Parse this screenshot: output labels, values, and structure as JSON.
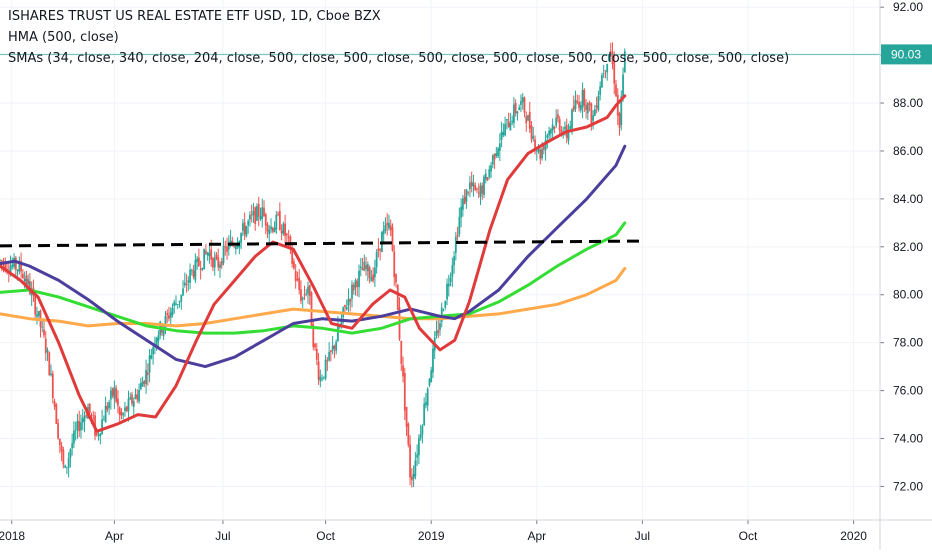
{
  "legend": {
    "title": "ISHARES TRUST US REAL ESTATE ETF USD, 1D, Cboe BZX",
    "hma": "HMA (500, close)",
    "smas": "SMAs (34, close, 340, close, 204, close, 500, close, 500, close, 500, close, 500, close, 500, close, 500, close, 500, close)"
  },
  "chart_data": {
    "type": "line",
    "title": "ISHARES TRUST US REAL ESTATE ETF USD, 1D, Cboe BZX",
    "x_ticks": [
      "2018",
      "Apr",
      "Jul",
      "Oct",
      "2019",
      "Apr",
      "Jul",
      "Oct",
      "2020"
    ],
    "y_ticks": [
      "92.00",
      "90.00",
      "88.00",
      "86.00",
      "84.00",
      "82.00",
      "80.00",
      "78.00",
      "76.00",
      "74.00",
      "72.00"
    ],
    "ylim": [
      70.6,
      92.3
    ],
    "xlim": [
      0,
      30
    ],
    "last_price": "90.03",
    "last_price_value": 90.03,
    "colors": {
      "up": "#26a69a",
      "down": "#ef5350",
      "price_line": "#26a69a",
      "hma": "#e03a3a",
      "sma_blue": "#4b3e9c",
      "sma_green": "#33dd33",
      "sma_orange": "#ffa94a",
      "dashed": "#000000",
      "axis_text": "#131722"
    },
    "price_path": [
      [
        0.0,
        81.4
      ],
      [
        0.7,
        81.1
      ],
      [
        1.0,
        80.3
      ],
      [
        1.3,
        79.1
      ],
      [
        1.6,
        77.6
      ],
      [
        1.8,
        76.0
      ],
      [
        2.0,
        74.1
      ],
      [
        2.2,
        72.5
      ],
      [
        2.4,
        73.6
      ],
      [
        2.7,
        74.6
      ],
      [
        3.0,
        75.3
      ],
      [
        3.3,
        74.1
      ],
      [
        3.6,
        75.2
      ],
      [
        3.9,
        76.0
      ],
      [
        4.1,
        74.8
      ],
      [
        4.4,
        75.4
      ],
      [
        4.7,
        75.9
      ],
      [
        5.0,
        76.8
      ],
      [
        5.3,
        78.3
      ],
      [
        5.6,
        78.8
      ],
      [
        5.9,
        79.5
      ],
      [
        6.2,
        80.0
      ],
      [
        6.5,
        80.9
      ],
      [
        6.8,
        81.3
      ],
      [
        7.1,
        81.8
      ],
      [
        7.4,
        81.2
      ],
      [
        7.7,
        81.9
      ],
      [
        8.0,
        82.2
      ],
      [
        8.3,
        82.7
      ],
      [
        8.6,
        83.2
      ],
      [
        8.9,
        83.5
      ],
      [
        9.2,
        82.8
      ],
      [
        9.5,
        83.1
      ],
      [
        9.8,
        82.3
      ],
      [
        10.1,
        80.6
      ],
      [
        10.3,
        79.8
      ],
      [
        10.5,
        80.4
      ],
      [
        10.7,
        77.9
      ],
      [
        10.9,
        76.5
      ],
      [
        11.2,
        77.2
      ],
      [
        11.5,
        78.3
      ],
      [
        11.8,
        79.6
      ],
      [
        12.1,
        80.5
      ],
      [
        12.4,
        81.1
      ],
      [
        12.7,
        80.8
      ],
      [
        13.0,
        82.4
      ],
      [
        13.3,
        82.9
      ],
      [
        13.5,
        80.3
      ],
      [
        13.7,
        77.0
      ],
      [
        13.9,
        73.9
      ],
      [
        14.0,
        72.2
      ],
      [
        14.2,
        73.4
      ],
      [
        14.5,
        75.6
      ],
      [
        14.8,
        77.8
      ],
      [
        15.1,
        79.5
      ],
      [
        15.4,
        81.3
      ],
      [
        15.7,
        83.5
      ],
      [
        16.0,
        84.6
      ],
      [
        16.3,
        84.1
      ],
      [
        16.6,
        84.9
      ],
      [
        16.9,
        86.1
      ],
      [
        17.2,
        86.9
      ],
      [
        17.5,
        87.6
      ],
      [
        17.8,
        88.0
      ],
      [
        18.1,
        86.9
      ],
      [
        18.4,
        85.8
      ],
      [
        18.7,
        86.9
      ],
      [
        19.0,
        87.3
      ],
      [
        19.3,
        86.6
      ],
      [
        19.6,
        87.9
      ],
      [
        19.9,
        88.3
      ],
      [
        20.2,
        87.3
      ],
      [
        20.5,
        89.1
      ],
      [
        20.8,
        90.3
      ],
      [
        21.0,
        88.5
      ],
      [
        21.1,
        86.7
      ],
      [
        21.3,
        90.0
      ]
    ],
    "dashed_line": {
      "x": [
        0.0,
        21.8
      ],
      "y": [
        82.04,
        82.24
      ]
    },
    "hma_points": [
      [
        0.0,
        81.2
      ],
      [
        0.7,
        80.6
      ],
      [
        1.3,
        79.9
      ],
      [
        2.0,
        78.0
      ],
      [
        2.7,
        75.8
      ],
      [
        3.3,
        74.3
      ],
      [
        4.0,
        74.6
      ],
      [
        4.7,
        75.0
      ],
      [
        5.3,
        74.9
      ],
      [
        6.0,
        76.2
      ],
      [
        6.7,
        78.1
      ],
      [
        7.3,
        79.6
      ],
      [
        8.0,
        80.6
      ],
      [
        8.7,
        81.6
      ],
      [
        9.3,
        82.2
      ],
      [
        10.0,
        81.9
      ],
      [
        10.7,
        80.3
      ],
      [
        11.3,
        78.8
      ],
      [
        12.0,
        78.6
      ],
      [
        12.7,
        79.6
      ],
      [
        13.3,
        80.2
      ],
      [
        13.8,
        79.9
      ],
      [
        14.3,
        78.6
      ],
      [
        15.0,
        77.7
      ],
      [
        15.5,
        78.1
      ],
      [
        16.0,
        79.7
      ],
      [
        16.7,
        82.7
      ],
      [
        17.3,
        84.8
      ],
      [
        18.0,
        85.9
      ],
      [
        18.7,
        86.4
      ],
      [
        19.3,
        86.8
      ],
      [
        20.0,
        87.0
      ],
      [
        20.7,
        87.4
      ],
      [
        21.0,
        87.9
      ],
      [
        21.3,
        88.3
      ]
    ],
    "sma_blue_points": [
      [
        0.0,
        81.3
      ],
      [
        0.5,
        81.4
      ],
      [
        1.0,
        81.2
      ],
      [
        2.0,
        80.6
      ],
      [
        3.0,
        79.8
      ],
      [
        4.0,
        78.9
      ],
      [
        5.0,
        78.1
      ],
      [
        6.0,
        77.3
      ],
      [
        7.0,
        77.0
      ],
      [
        8.0,
        77.4
      ],
      [
        9.0,
        78.1
      ],
      [
        10.0,
        78.8
      ],
      [
        11.0,
        79.0
      ],
      [
        12.0,
        78.9
      ],
      [
        13.0,
        79.1
      ],
      [
        14.0,
        79.4
      ],
      [
        15.0,
        79.1
      ],
      [
        15.5,
        79.0
      ],
      [
        16.0,
        79.3
      ],
      [
        17.0,
        80.2
      ],
      [
        18.0,
        81.6
      ],
      [
        19.0,
        82.8
      ],
      [
        20.0,
        84.0
      ],
      [
        21.0,
        85.4
      ],
      [
        21.3,
        86.2
      ]
    ],
    "sma_green_points": [
      [
        0.0,
        80.1
      ],
      [
        1.0,
        80.2
      ],
      [
        2.0,
        79.9
      ],
      [
        3.0,
        79.5
      ],
      [
        4.0,
        79.1
      ],
      [
        5.0,
        78.7
      ],
      [
        6.0,
        78.5
      ],
      [
        7.0,
        78.4
      ],
      [
        8.0,
        78.4
      ],
      [
        9.0,
        78.5
      ],
      [
        10.0,
        78.7
      ],
      [
        11.0,
        78.6
      ],
      [
        12.0,
        78.4
      ],
      [
        13.0,
        78.6
      ],
      [
        14.0,
        79.0
      ],
      [
        15.0,
        79.1
      ],
      [
        16.0,
        79.2
      ],
      [
        17.0,
        79.7
      ],
      [
        18.0,
        80.4
      ],
      [
        19.0,
        81.2
      ],
      [
        20.0,
        81.9
      ],
      [
        21.0,
        82.5
      ],
      [
        21.3,
        83.0
      ]
    ],
    "sma_orange_points": [
      [
        0.0,
        79.2
      ],
      [
        1.0,
        79.0
      ],
      [
        2.0,
        78.9
      ],
      [
        3.0,
        78.7
      ],
      [
        4.0,
        78.8
      ],
      [
        5.0,
        78.8
      ],
      [
        6.0,
        78.7
      ],
      [
        7.0,
        78.8
      ],
      [
        8.0,
        79.0
      ],
      [
        9.0,
        79.2
      ],
      [
        10.0,
        79.4
      ],
      [
        11.0,
        79.3
      ],
      [
        12.0,
        79.2
      ],
      [
        13.0,
        79.1
      ],
      [
        14.0,
        79.0
      ],
      [
        15.0,
        79.0
      ],
      [
        16.0,
        79.1
      ],
      [
        17.0,
        79.2
      ],
      [
        18.0,
        79.4
      ],
      [
        19.0,
        79.6
      ],
      [
        20.0,
        80.0
      ],
      [
        21.0,
        80.6
      ],
      [
        21.3,
        81.1
      ]
    ]
  }
}
